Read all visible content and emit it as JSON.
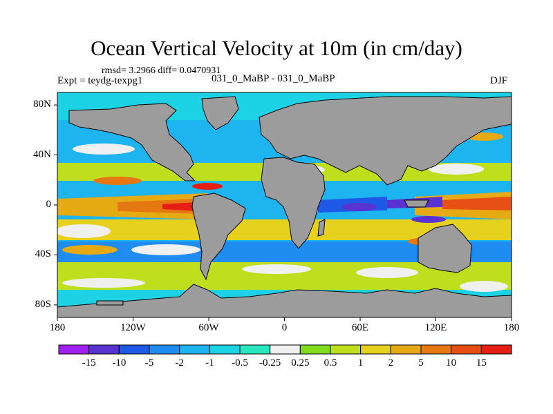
{
  "title": "Ocean Vertical Velocity at 10m (in cm/day)",
  "stats": "rmsd= 3.2966 diff= 0.0470931",
  "experiment": "Expt = teydg-texpg1",
  "comparison": "031_0_MaBP - 031_0_MaBP",
  "season": "DJF",
  "lat_ticks": [
    {
      "label": "80N",
      "lat": 80
    },
    {
      "label": "40N",
      "lat": 40
    },
    {
      "label": "0",
      "lat": 0
    },
    {
      "label": "40S",
      "lat": -40
    },
    {
      "label": "80S",
      "lat": -80
    }
  ],
  "lon_ticks": [
    {
      "label": "180",
      "lon": -180
    },
    {
      "label": "120W",
      "lon": -120
    },
    {
      "label": "60W",
      "lon": -60
    },
    {
      "label": "0",
      "lon": 0
    },
    {
      "label": "60E",
      "lon": 60
    },
    {
      "label": "120E",
      "lon": 120
    },
    {
      "label": "180",
      "lon": 180
    }
  ],
  "colorbar": {
    "labels": [
      "-15",
      "-10",
      "-5",
      "-2",
      "-1",
      "-0.5",
      "-0.25",
      "0.25",
      "0.5",
      "1",
      "2",
      "5",
      "10",
      "15"
    ],
    "colors": [
      "#a020f0",
      "#5a32d2",
      "#1e5ae6",
      "#1e8cf0",
      "#1eb4f0",
      "#1ed2e6",
      "#28e6be",
      "#f0f0f0",
      "#82dc1e",
      "#bede1e",
      "#e6d21e",
      "#e6aa14",
      "#e67814",
      "#e65014",
      "#e61e14"
    ]
  },
  "land_color": "#9c9c9c"
}
